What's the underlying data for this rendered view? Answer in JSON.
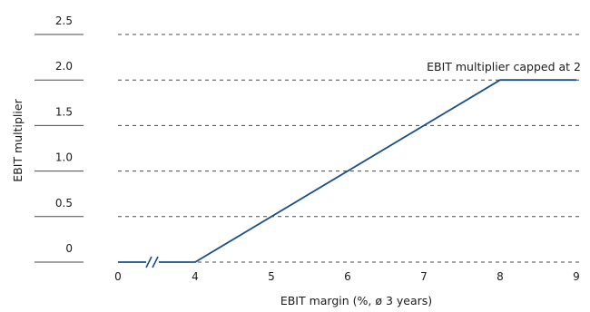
{
  "chart_data": {
    "type": "line",
    "xlabel": "EBIT margin (%, ø 3 years)",
    "ylabel": "EBIT multiplier",
    "x_ticks": [
      "0",
      "4",
      "5",
      "6",
      "7",
      "8",
      "9"
    ],
    "y_ticks": [
      "0",
      "0.5",
      "1.0",
      "1.5",
      "2.0",
      "2.5"
    ],
    "ylim": [
      0,
      2.5
    ],
    "x_axis_break": {
      "between": [
        "0",
        "4"
      ],
      "symbol": "//"
    },
    "grid": "horizontal-dashed",
    "series": [
      {
        "points": [
          {
            "x": 0,
            "y": 0
          },
          {
            "x": 4,
            "y": 0
          },
          {
            "x": 8,
            "y": 2.0
          },
          {
            "x": 9,
            "y": 2.0
          }
        ]
      }
    ],
    "annotations": [
      {
        "text": "EBIT multiplier capped at 2",
        "x": 8,
        "y": 2.0
      }
    ],
    "colors": {
      "line": "#1b4f8a",
      "grid": "#4a4a4a",
      "text": "#1a1a1a"
    }
  }
}
